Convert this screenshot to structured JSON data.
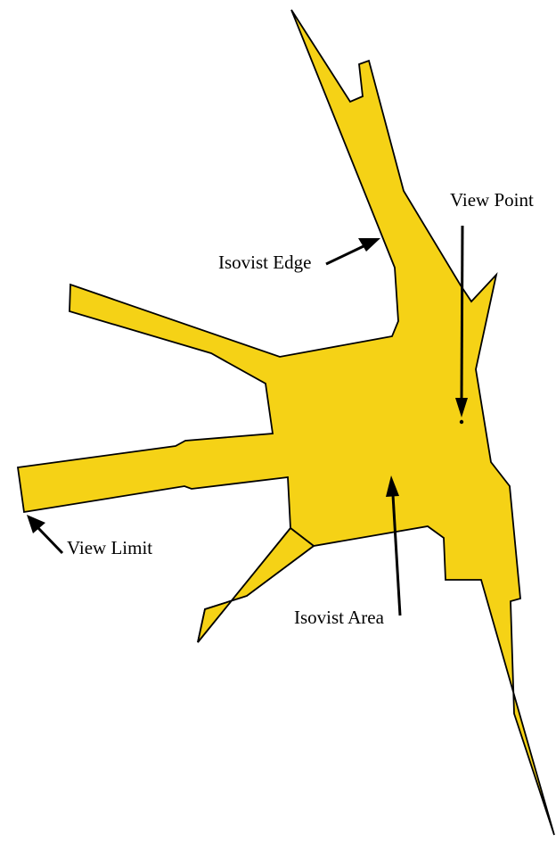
{
  "colors": {
    "isovist_fill": "#F5D216",
    "isovist_stroke": "#000000",
    "annotation": "#000000",
    "background": "#FFFFFF"
  },
  "labels": {
    "view_point": "View Point",
    "isovist_edge": "Isovist Edge",
    "view_limit": "View Limit",
    "isovist_area": "Isovist Area"
  }
}
